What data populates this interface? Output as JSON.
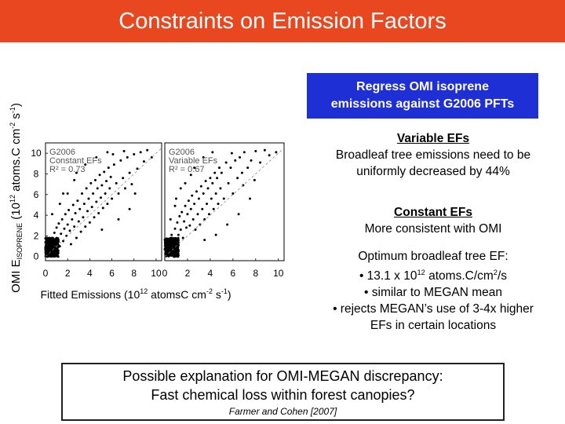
{
  "header": {
    "title": "Constraints on Emission Factors"
  },
  "callout": {
    "line1": "Regress OMI isoprene",
    "line2": "emissions against G2006 PFTs"
  },
  "variable": {
    "heading": "Variable EFs",
    "line1": "Broadleaf tree emissions need to be",
    "line2": "uniformly decreased by 44%"
  },
  "constant": {
    "heading": "Constant EFs",
    "line1": "More consistent with OMI"
  },
  "optimum": {
    "line1": "Optimum broadleaf tree EF:",
    "line2_pre": "• 13.1 x 10",
    "line2_sup": "12",
    "line2_mid": " atoms.C/cm",
    "line2_sup2": "2",
    "line2_post": "/s",
    "line3": "• similar to MEGAN mean",
    "line4": "• rejects MEGAN’s use of 3-4x higher",
    "line5": "EFs in certain locations"
  },
  "explanation": {
    "line1": "Possible explanation for OMI-MEGAN discrepancy:",
    "line2": "Fast chemical loss within forest canopies?",
    "citation": "Farmer and Cohen [2007]"
  },
  "chart_data": [
    {
      "type": "scatter",
      "panel_label": [
        "G2006",
        "Constant EFs"
      ],
      "r2_label": "R² = 0.73",
      "x_ticks": [
        "0",
        "2",
        "4",
        "6",
        "8",
        "10"
      ],
      "y_ticks": [
        "0",
        "2",
        "4",
        "6",
        "8",
        "10"
      ],
      "xlim": [
        0,
        10.5
      ],
      "ylim": [
        -0.4,
        11
      ],
      "one_to_one_line": true,
      "points": [
        [
          0.2,
          0.3
        ],
        [
          0.3,
          0.8
        ],
        [
          0.4,
          1.2
        ],
        [
          0.5,
          0.5
        ],
        [
          0.6,
          1.8
        ],
        [
          0.7,
          0.9
        ],
        [
          0.8,
          2.3
        ],
        [
          0.9,
          1.4
        ],
        [
          1.0,
          0.6
        ],
        [
          1.0,
          2.8
        ],
        [
          1.1,
          1.7
        ],
        [
          1.2,
          3.2
        ],
        [
          1.3,
          1.0
        ],
        [
          1.4,
          2.2
        ],
        [
          1.5,
          3.6
        ],
        [
          1.6,
          1.5
        ],
        [
          1.7,
          2.7
        ],
        [
          1.8,
          4.1
        ],
        [
          1.9,
          2.0
        ],
        [
          2.0,
          3.1
        ],
        [
          2.1,
          4.5
        ],
        [
          2.2,
          2.5
        ],
        [
          2.3,
          1.2
        ],
        [
          2.4,
          3.6
        ],
        [
          2.5,
          5.0
        ],
        [
          2.6,
          2.9
        ],
        [
          2.7,
          4.2
        ],
        [
          2.8,
          1.8
        ],
        [
          2.9,
          5.4
        ],
        [
          3.0,
          3.4
        ],
        [
          3.1,
          4.6
        ],
        [
          3.2,
          2.4
        ],
        [
          3.3,
          6.1
        ],
        [
          3.4,
          3.8
        ],
        [
          3.5,
          5.1
        ],
        [
          3.6,
          2.9
        ],
        [
          3.7,
          6.6
        ],
        [
          3.8,
          4.4
        ],
        [
          3.9,
          5.6
        ],
        [
          4.0,
          3.3
        ],
        [
          4.1,
          7.1
        ],
        [
          4.2,
          4.8
        ],
        [
          4.3,
          6.1
        ],
        [
          4.4,
          3.8
        ],
        [
          4.5,
          7.4
        ],
        [
          4.6,
          5.3
        ],
        [
          4.7,
          6.6
        ],
        [
          4.8,
          4.2
        ],
        [
          4.9,
          7.9
        ],
        [
          5.0,
          5.7
        ],
        [
          5.1,
          6.9
        ],
        [
          5.2,
          4.7
        ],
        [
          5.3,
          8.2
        ],
        [
          5.4,
          6.1
        ],
        [
          5.5,
          7.3
        ],
        [
          5.6,
          5.1
        ],
        [
          5.7,
          8.6
        ],
        [
          5.8,
          6.6
        ],
        [
          5.9,
          7.7
        ],
        [
          6.0,
          5.6
        ],
        [
          6.2,
          8.9
        ],
        [
          6.4,
          7.1
        ],
        [
          6.6,
          6.1
        ],
        [
          6.8,
          9.3
        ],
        [
          7.0,
          7.6
        ],
        [
          7.2,
          6.6
        ],
        [
          7.4,
          9.6
        ],
        [
          7.6,
          8.1
        ],
        [
          7.8,
          7.0
        ],
        [
          8.0,
          9.9
        ],
        [
          8.3,
          8.5
        ],
        [
          8.6,
          10.1
        ],
        [
          8.9,
          9.2
        ],
        [
          9.2,
          10.3
        ],
        [
          9.6,
          9.6
        ],
        [
          3.6,
          8.9
        ],
        [
          4.6,
          9.6
        ],
        [
          2.6,
          7.4
        ],
        [
          5.6,
          10.1
        ],
        [
          1.6,
          6.1
        ],
        [
          6.6,
          3.6
        ],
        [
          7.6,
          4.6
        ],
        [
          5.1,
          2.6
        ],
        [
          8.1,
          6.1
        ],
        [
          0.6,
          4.1
        ],
        [
          1.3,
          5.1
        ],
        [
          2.0,
          6.1
        ],
        [
          2.8,
          8.1
        ],
        [
          7.1,
          10.2
        ],
        [
          6.1,
          9.9
        ]
      ]
    },
    {
      "type": "scatter",
      "panel_label": [
        "G2006",
        "Variable EFs"
      ],
      "r2_label": "R² = 0.67",
      "x_ticks": [
        "0",
        "2",
        "4",
        "6",
        "8",
        "10"
      ],
      "xlim": [
        0,
        10.5
      ],
      "ylim": [
        -0.4,
        11
      ],
      "one_to_one_line": true,
      "points": [
        [
          0.3,
          0.6
        ],
        [
          0.5,
          1.4
        ],
        [
          0.6,
          2.1
        ],
        [
          0.8,
          0.9
        ],
        [
          0.9,
          2.7
        ],
        [
          1.0,
          1.6
        ],
        [
          1.1,
          3.3
        ],
        [
          1.2,
          2.1
        ],
        [
          1.3,
          3.9
        ],
        [
          1.4,
          2.6
        ],
        [
          1.5,
          4.3
        ],
        [
          1.6,
          1.8
        ],
        [
          1.7,
          3.4
        ],
        [
          1.8,
          4.9
        ],
        [
          1.9,
          2.8
        ],
        [
          2.0,
          4.1
        ],
        [
          2.1,
          5.4
        ],
        [
          2.2,
          3.0
        ],
        [
          2.3,
          4.6
        ],
        [
          2.4,
          5.9
        ],
        [
          2.5,
          3.6
        ],
        [
          2.6,
          5.1
        ],
        [
          2.7,
          2.6
        ],
        [
          2.8,
          6.3
        ],
        [
          2.9,
          4.1
        ],
        [
          3.0,
          5.6
        ],
        [
          3.1,
          3.1
        ],
        [
          3.2,
          6.8
        ],
        [
          3.3,
          4.6
        ],
        [
          3.4,
          6.1
        ],
        [
          3.5,
          3.6
        ],
        [
          3.6,
          7.3
        ],
        [
          3.7,
          5.1
        ],
        [
          3.8,
          6.6
        ],
        [
          3.9,
          4.1
        ],
        [
          4.0,
          7.6
        ],
        [
          4.1,
          5.6
        ],
        [
          4.2,
          7.1
        ],
        [
          4.3,
          4.6
        ],
        [
          4.4,
          8.1
        ],
        [
          4.5,
          6.1
        ],
        [
          4.6,
          7.6
        ],
        [
          4.7,
          5.1
        ],
        [
          4.8,
          8.6
        ],
        [
          4.9,
          6.6
        ],
        [
          5.0,
          8.1
        ],
        [
          5.2,
          5.6
        ],
        [
          5.4,
          9.1
        ],
        [
          5.6,
          7.1
        ],
        [
          5.8,
          8.6
        ],
        [
          6.0,
          6.1
        ],
        [
          6.2,
          9.3
        ],
        [
          6.4,
          7.6
        ],
        [
          6.6,
          9.6
        ],
        [
          6.8,
          8.1
        ],
        [
          7.0,
          10.1
        ],
        [
          7.3,
          8.6
        ],
        [
          7.6,
          9.3
        ],
        [
          8.0,
          10.2
        ],
        [
          8.4,
          9.1
        ],
        [
          8.8,
          10.3
        ],
        [
          9.2,
          9.8
        ],
        [
          9.8,
          10.1
        ],
        [
          1.0,
          5.6
        ],
        [
          1.8,
          7.1
        ],
        [
          2.6,
          8.6
        ],
        [
          3.4,
          9.6
        ],
        [
          4.2,
          10.1
        ],
        [
          0.5,
          3.6
        ],
        [
          1.4,
          6.6
        ],
        [
          5.5,
          3.1
        ],
        [
          6.5,
          4.1
        ],
        [
          7.5,
          5.6
        ],
        [
          4.5,
          2.1
        ],
        [
          3.5,
          1.6
        ],
        [
          2.3,
          7.9
        ],
        [
          5.9,
          10.0
        ],
        [
          0.9,
          4.9
        ],
        [
          6.9,
          6.9
        ],
        [
          7.9,
          7.4
        ]
      ]
    }
  ],
  "axes": {
    "x_title_main": "Fitted Emissions (10",
    "x_title_sup1": "12",
    "x_title_mid": " atomsC cm",
    "x_title_sup2": "-2",
    "x_title_mid2": " s",
    "x_title_sup3": "-1",
    "x_title_end": ")",
    "y_title_pre": "OMI E",
    "y_title_sub": "ISOPRENE",
    "y_title_mid": " (10",
    "y_title_sup1": "12",
    "y_title_mid2": " atoms.C cm",
    "y_title_sup2": "-2",
    "y_title_mid3": " s",
    "y_title_sup3": "-1",
    "y_title_end": ")"
  },
  "colors": {
    "title_bar": "#e8471f",
    "callout": "#1f2fd6",
    "points": "#000000"
  }
}
